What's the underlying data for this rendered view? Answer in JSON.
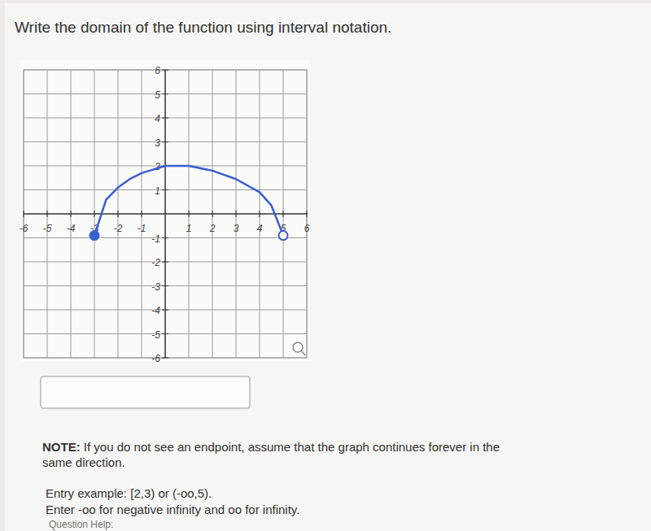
{
  "page": {
    "question": "Write the domain of the function using interval notation.",
    "note_label": "NOTE:",
    "note_lines": [
      "If you do not see an endpoint, assume that the graph continues forever in the",
      "same direction."
    ],
    "entry_example": "Entry example: [2,3) or (-oo,5).",
    "entry_help": "Enter -oo for negative infinity and oo for infinity.",
    "footer": "Question Help:"
  },
  "chart_data": {
    "type": "line",
    "x": [
      -3,
      -2.5,
      -2,
      -1.5,
      -1,
      0,
      1,
      2,
      3,
      4,
      4.5,
      5
    ],
    "series": [
      {
        "color": "#3a5fd0",
        "marker": "closed-start-open-end",
        "line_style": "solid",
        "values": [
          -0.9,
          0.6,
          1.1,
          1.45,
          1.7,
          2,
          2,
          1.8,
          1.45,
          0.9,
          0.35,
          -0.9
        ]
      }
    ],
    "xlim": [
      -6,
      6
    ],
    "ylim": [
      -6,
      6
    ],
    "xticks": [
      -6,
      -5,
      -4,
      -3,
      -2,
      -1,
      1,
      2,
      3,
      4,
      5,
      6
    ],
    "yticks": [
      6,
      5,
      4,
      3,
      2,
      1,
      -1,
      -2,
      -3,
      -4,
      -5,
      -6
    ],
    "grid": true
  }
}
